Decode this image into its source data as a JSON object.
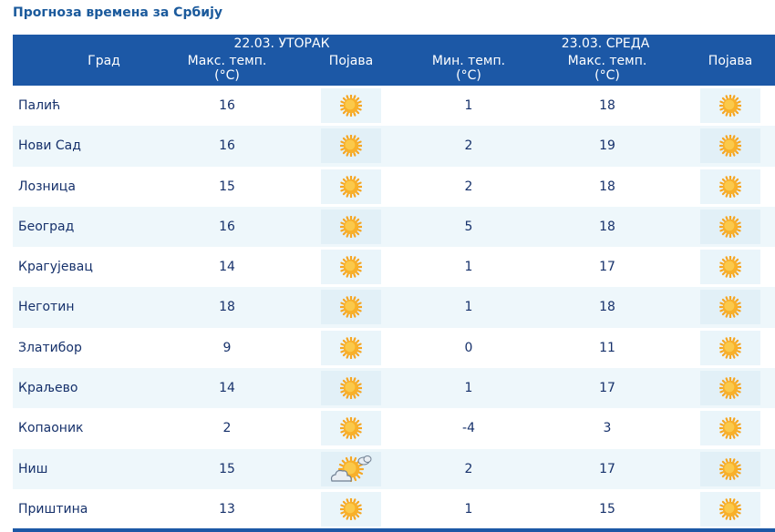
{
  "title": "Прогноза времена за Србију",
  "header": {
    "city": "Град",
    "day1": "22.03. УТОРАК",
    "day2": "23.03. СРЕДА",
    "max_temp_l1": "Макс. темп.",
    "max_temp_l2": "(°C)",
    "min_temp_l1": "Мин. темп.",
    "min_temp_l2": "(°C)",
    "phenomenon": "Појава"
  },
  "rows": [
    {
      "city": "Палић",
      "max1": "16",
      "icon1": "sun-icon",
      "min2": "1",
      "max2": "18",
      "icon2": "sun-icon"
    },
    {
      "city": "Нови Сад",
      "max1": "16",
      "icon1": "sun-icon",
      "min2": "2",
      "max2": "19",
      "icon2": "sun-icon"
    },
    {
      "city": "Лозница",
      "max1": "15",
      "icon1": "sun-icon",
      "min2": "2",
      "max2": "18",
      "icon2": "sun-icon"
    },
    {
      "city": "Београд",
      "max1": "16",
      "icon1": "sun-icon",
      "min2": "5",
      "max2": "18",
      "icon2": "sun-icon"
    },
    {
      "city": "Крагујевац",
      "max1": "14",
      "icon1": "sun-icon",
      "min2": "1",
      "max2": "17",
      "icon2": "sun-icon"
    },
    {
      "city": "Неготин",
      "max1": "18",
      "icon1": "sun-icon",
      "min2": "1",
      "max2": "18",
      "icon2": "sun-icon"
    },
    {
      "city": "Златибор",
      "max1": "9",
      "icon1": "sun-icon",
      "min2": "0",
      "max2": "11",
      "icon2": "sun-icon"
    },
    {
      "city": "Краљево",
      "max1": "14",
      "icon1": "sun-icon",
      "min2": "1",
      "max2": "17",
      "icon2": "sun-icon"
    },
    {
      "city": "Копаоник",
      "max1": "2",
      "icon1": "sun-icon",
      "min2": "-4",
      "max2": "3",
      "icon2": "sun-icon"
    },
    {
      "city": "Ниш",
      "max1": "15",
      "icon1": "partly-cloudy-icon",
      "min2": "2",
      "max2": "17",
      "icon2": "sun-icon"
    },
    {
      "city": "Приштина",
      "max1": "13",
      "icon1": "sun-icon",
      "min2": "1",
      "max2": "15",
      "icon2": "sun-icon"
    }
  ]
}
